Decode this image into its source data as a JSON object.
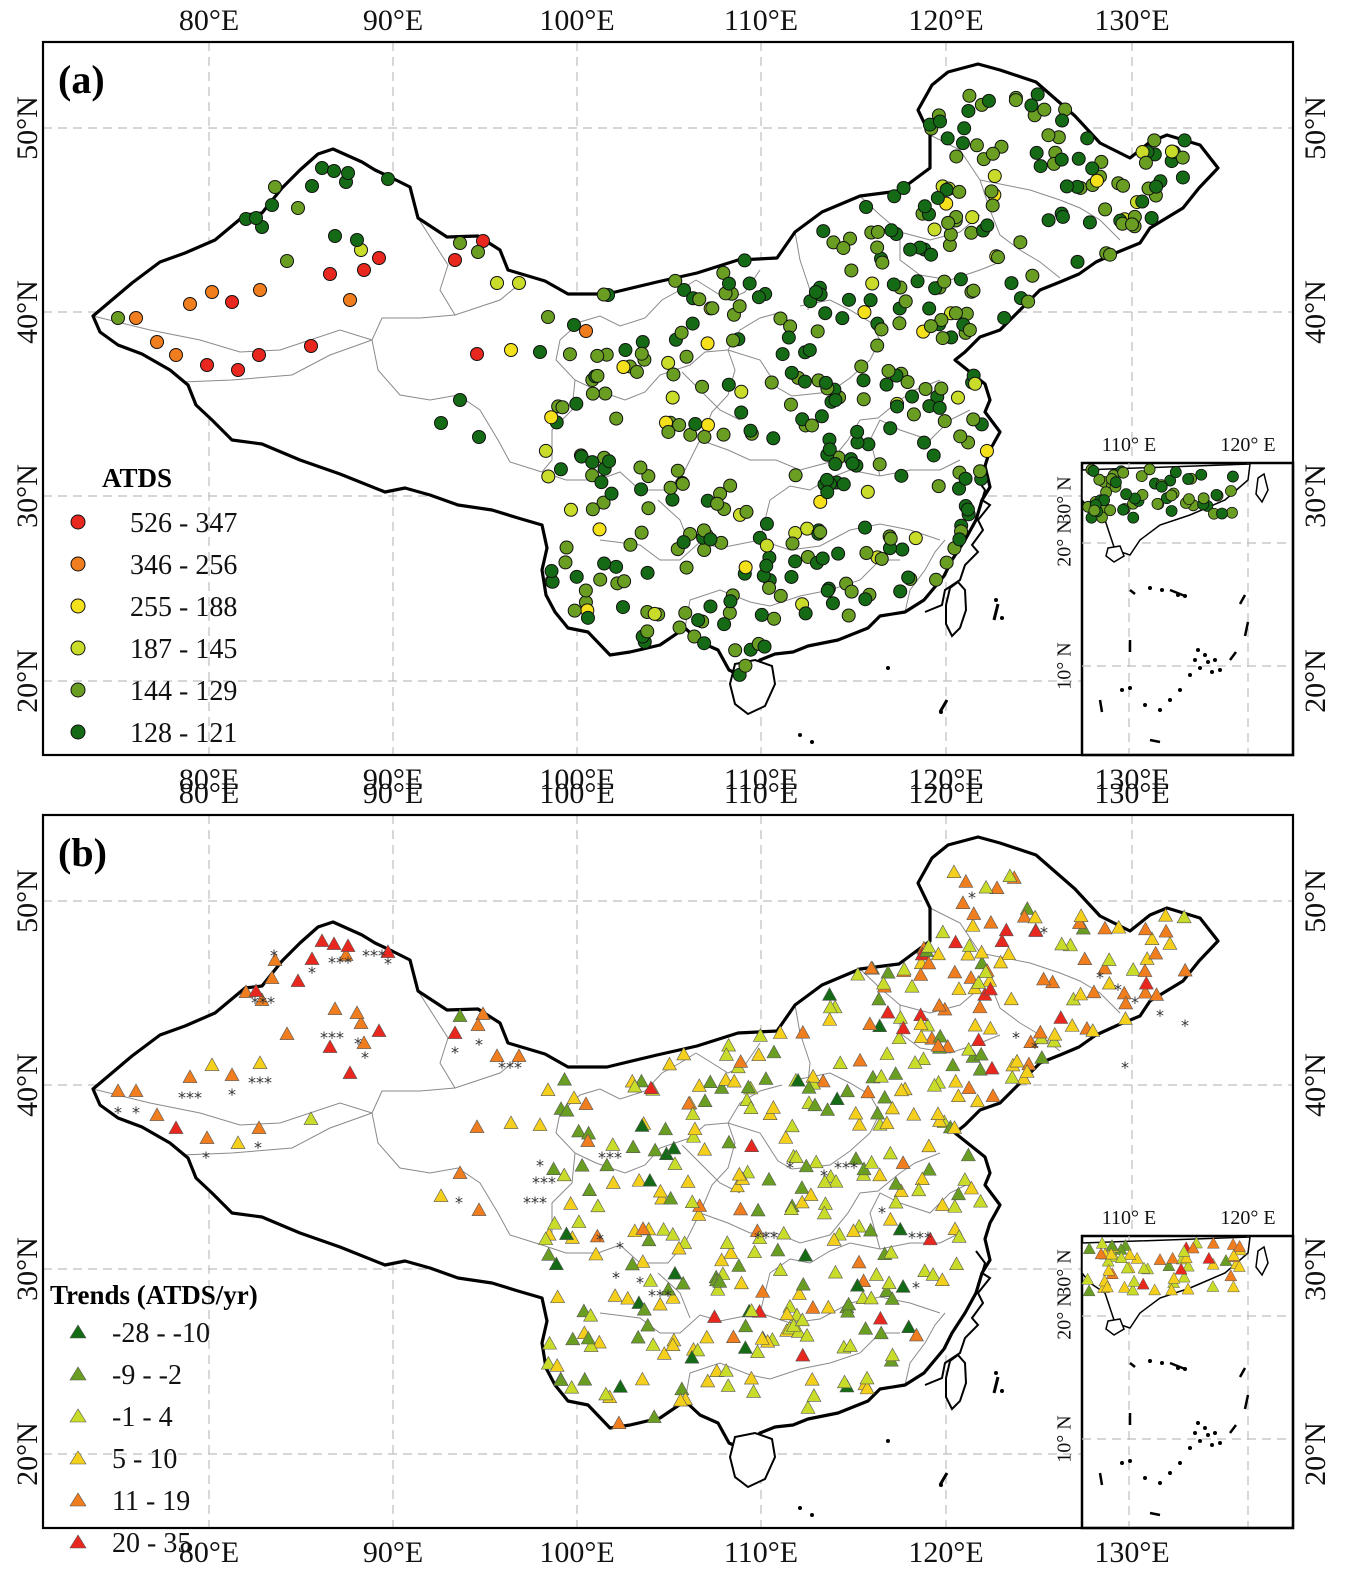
{
  "x_ticks": [
    "80°E",
    "90°E",
    "100°E",
    "110°E",
    "120°E",
    "130°E"
  ],
  "y_ticks": [
    "50°N",
    "40°N",
    "30°N",
    "20°N"
  ],
  "inset": {
    "x_ticks": [
      "110°  E",
      "120°  E"
    ],
    "y_ticks": [
      "30°  N",
      "20°  N",
      "10°  N"
    ]
  },
  "panel_a": {
    "label": "(a)",
    "legend_title": "ATDS",
    "legend": [
      {
        "label": "526 - 347",
        "color": "#e8281e"
      },
      {
        "label": "346 - 256",
        "color": "#f07d1e"
      },
      {
        "label": "255 - 188",
        "color": "#f4e11c"
      },
      {
        "label": "187 - 145",
        "color": "#c9dc2a"
      },
      {
        "label": "144 - 129",
        "color": "#6a9e22"
      },
      {
        "label": "128 - 121",
        "color": "#156b15"
      }
    ]
  },
  "panel_b": {
    "label": "(b)",
    "legend_title": "Trends (ATDS/yr)",
    "legend": [
      {
        "label": "-28 - -10",
        "color": "#156b15"
      },
      {
        "label": "-9 - -2",
        "color": "#6a9e22"
      },
      {
        "label": "-1 - 4",
        "color": "#c9dc2a"
      },
      {
        "label": "5 - 10",
        "color": "#f4d01c"
      },
      {
        "label": "11 - 19",
        "color": "#f07d1e"
      },
      {
        "label": "20 - 35",
        "color": "#e8281e"
      }
    ],
    "significance_marks": [
      "*",
      "***"
    ]
  }
}
